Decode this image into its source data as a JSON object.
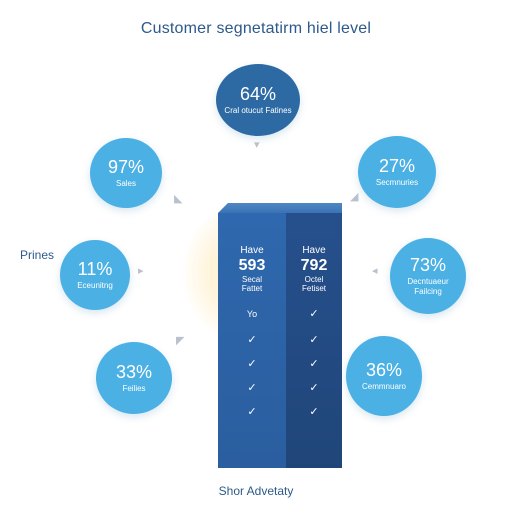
{
  "title": "Customer segnetatirm hiel level",
  "side_label": "Prines",
  "footer": "Shor Advetaty",
  "colors": {
    "bubble": "#4bb0e4",
    "bubble_dark": "#2d6aa4",
    "panel_left": "#2f68ae",
    "panel_right": "#26508d",
    "text": "#2c5a8a"
  },
  "bubbles": [
    {
      "pct": "64%",
      "label": "Cral otucut Fatines"
    },
    {
      "pct": "97%",
      "label": "Sales"
    },
    {
      "pct": "27%",
      "label": "Secmnuries"
    },
    {
      "pct": "11%",
      "label": "Eceunitng"
    },
    {
      "pct": "73%",
      "label": "Decntuaeur Failcing"
    },
    {
      "pct": "33%",
      "label": "Feilies"
    },
    {
      "pct": "36%",
      "label": "Cemmnuaro"
    }
  ],
  "panel": {
    "left": {
      "keyword": "Have",
      "number": "593",
      "line1": "Secal",
      "line2": "Fattet",
      "note": "Yo"
    },
    "right": {
      "keyword": "Have",
      "number": "792",
      "line1": "Octel",
      "line2": "Fetiset"
    },
    "check": "✓"
  }
}
